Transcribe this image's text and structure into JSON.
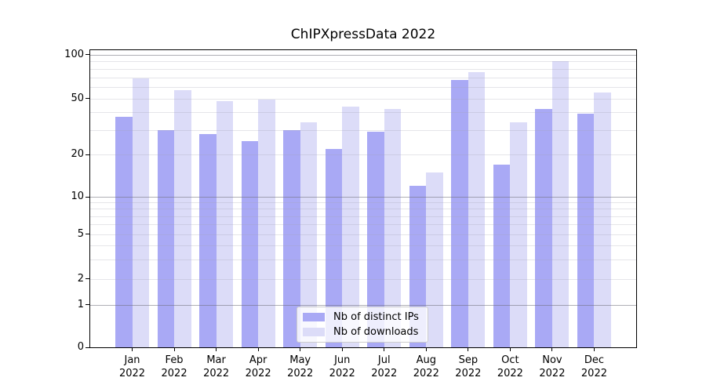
{
  "chart_data": {
    "type": "bar",
    "title": "ChIPXpressData 2022",
    "categories": [
      "Jan",
      "Feb",
      "Mar",
      "Apr",
      "May",
      "Jun",
      "Jul",
      "Aug",
      "Sep",
      "Oct",
      "Nov",
      "Dec"
    ],
    "year": "2022",
    "series": [
      {
        "name": "Nb of distinct IPs",
        "color": "#a9a9f5",
        "values": [
          37,
          30,
          28,
          25,
          30,
          22,
          29,
          12,
          67,
          17,
          42,
          39
        ]
      },
      {
        "name": "Nb of downloads",
        "color": "#dcdcf8",
        "values": [
          69,
          57,
          48,
          49,
          34,
          44,
          42,
          15,
          76,
          34,
          90,
          55
        ]
      }
    ],
    "xlabel": "",
    "ylabel": "",
    "yscale": "symlog",
    "yticks": [
      0,
      1,
      2,
      5,
      10,
      20,
      50,
      100
    ],
    "ylim": [
      0,
      105
    ],
    "grid": true,
    "legend_position": "lower center"
  }
}
